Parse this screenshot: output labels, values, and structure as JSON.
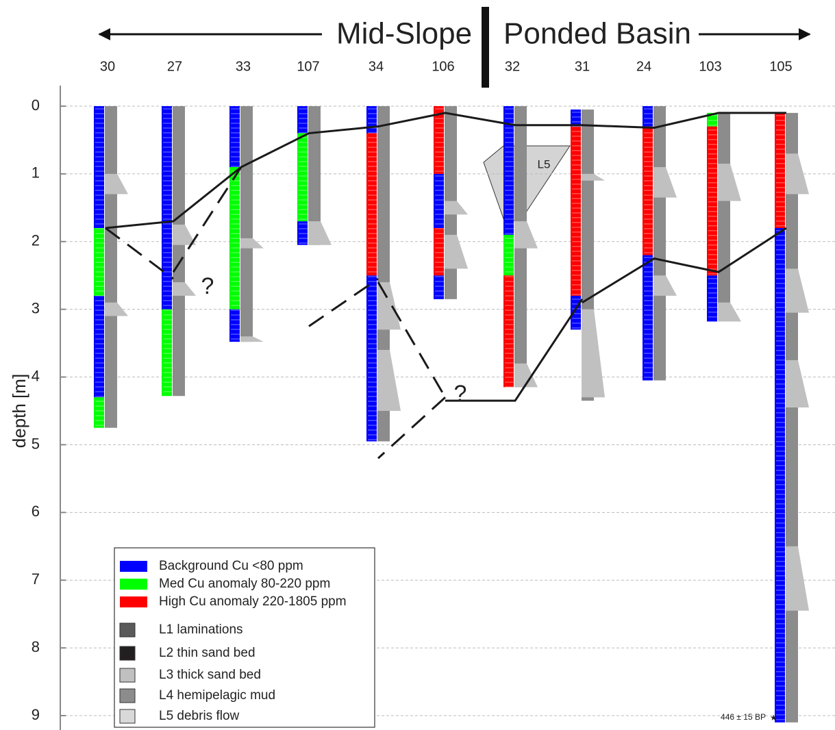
{
  "chart_data": {
    "type": "core-log",
    "header": {
      "left": "Mid-Slope",
      "right": "Ponded Basin"
    },
    "y_label": "depth [m]",
    "ylim": [
      0,
      9.1
    ],
    "yticks": [
      0,
      1,
      2,
      3,
      4,
      5,
      6,
      7,
      8,
      9
    ],
    "grid": true,
    "legend": [
      {
        "label": "Background Cu <80 ppm",
        "color": "#0000ff"
      },
      {
        "label": "Med Cu anomaly 80-220 ppm",
        "color": "#00ff00"
      },
      {
        "label": "High Cu anomaly 220-1805 ppm",
        "color": "#ff0000"
      },
      {
        "label": "L1 laminations",
        "color": "#5a5a5a"
      },
      {
        "label": "L2 thin sand bed",
        "color": "#231f20"
      },
      {
        "label": "L3 thick sand bed",
        "color": "#c0c0c0"
      },
      {
        "label": "L4 hemipelagic mud",
        "color": "#8c8c8c"
      },
      {
        "label": "L5 debris flow",
        "color": "#d9d9d9"
      }
    ],
    "cores": [
      {
        "name": "30",
        "top": 0,
        "bottom": 4.75,
        "cu": [
          [
            [
              0,
              1.8
            ],
            [
              2.8,
              4.3
            ]
          ],
          [
            [
              1.8,
              2.8
            ],
            [
              4.3,
              4.75
            ]
          ],
          []
        ],
        "thick_sand": [
          [
            1.0,
            1.3
          ],
          [
            2.9,
            3.1
          ]
        ]
      },
      {
        "name": "27",
        "top": 0,
        "bottom": 4.28,
        "cu": [
          [
            [
              0,
              2.3
            ],
            [
              2.3,
              3.0
            ]
          ],
          [
            [
              3.0,
              4.28
            ]
          ],
          []
        ],
        "thick_sand": [
          [
            1.75,
            2.05
          ],
          [
            2.6,
            2.8
          ]
        ]
      },
      {
        "name": "33",
        "top": 0,
        "bottom": 3.48,
        "cu": [
          [
            [
              0,
              0.9
            ],
            [
              3.0,
              3.48
            ]
          ],
          [
            [
              0.9,
              3.0
            ]
          ],
          []
        ],
        "thick_sand": [
          [
            1.95,
            2.1
          ],
          [
            3.4,
            3.48
          ]
        ]
      },
      {
        "name": "107",
        "top": 0,
        "bottom": 2.05,
        "cu": [
          [
            [
              0,
              0.4
            ],
            [
              1.7,
              2.05
            ]
          ],
          [
            [
              0.4,
              1.7
            ]
          ],
          []
        ],
        "thick_sand": [
          [
            1.7,
            2.05
          ]
        ]
      },
      {
        "name": "34",
        "top": 0,
        "bottom": 4.95,
        "cu": [
          [
            [
              0,
              0.4
            ],
            [
              2.5,
              4.95
            ]
          ],
          [],
          [
            [
              0.4,
              2.5
            ]
          ]
        ],
        "thick_sand": [
          [
            2.6,
            3.3
          ],
          [
            3.6,
            4.5
          ]
        ]
      },
      {
        "name": "106",
        "top": 0,
        "bottom": 2.85,
        "cu": [
          [
            [
              1.0,
              1.8
            ],
            [
              2.5,
              2.85
            ]
          ],
          [],
          [
            [
              0,
              1.0
            ],
            [
              1.8,
              2.5
            ]
          ]
        ],
        "thick_sand": [
          [
            1.4,
            1.6
          ],
          [
            1.9,
            2.4
          ]
        ]
      },
      {
        "name": "32",
        "top": 0,
        "bottom": 4.15,
        "cu": [
          [
            [
              0,
              1.9
            ]
          ],
          [
            [
              1.9,
              2.5
            ]
          ],
          [
            [
              2.5,
              4.15
            ]
          ]
        ],
        "thick_sand": [
          [
            1.7,
            2.1
          ],
          [
            3.8,
            4.15
          ]
        ]
      },
      {
        "name": "31",
        "top": 0.05,
        "bottom": 4.35,
        "cu": [
          [
            [
              0.05,
              0.3
            ],
            [
              2.8,
              3.3
            ]
          ],
          [],
          [
            [
              0.3,
              2.8
            ]
          ]
        ],
        "thick_sand": [
          [
            1.0,
            1.1
          ],
          [
            3.0,
            4.3
          ]
        ]
      },
      {
        "name": "24",
        "top": 0,
        "bottom": 4.05,
        "cu": [
          [
            [
              0,
              0.3
            ],
            [
              2.2,
              4.05
            ]
          ],
          [],
          [
            [
              0.3,
              2.2
            ]
          ]
        ],
        "thick_sand": [
          [
            0.9,
            1.35
          ],
          [
            2.5,
            2.8
          ]
        ]
      },
      {
        "name": "103",
        "top": 0.1,
        "bottom": 3.18,
        "cu": [
          [
            [
              2.5,
              3.18
            ]
          ],
          [
            [
              0.1,
              0.3
            ]
          ],
          [
            [
              0.3,
              2.5
            ]
          ]
        ],
        "thick_sand": [
          [
            0.85,
            1.4
          ],
          [
            2.9,
            3.18
          ]
        ]
      },
      {
        "name": "105",
        "top": 0.1,
        "bottom": 9.1,
        "cu": [
          [
            [
              1.8,
              9.1
            ]
          ],
          [],
          [
            [
              0.1,
              1.8
            ]
          ]
        ],
        "thick_sand": [
          [
            0.7,
            1.3
          ],
          [
            2.4,
            3.05
          ],
          [
            3.75,
            4.45
          ],
          [
            6.5,
            7.45
          ]
        ]
      }
    ],
    "correlations": [
      {
        "style": "solid",
        "points": [
          [
            "30",
            1.8
          ],
          [
            "27",
            1.7
          ],
          [
            "33",
            0.9
          ],
          [
            "107",
            0.4
          ],
          [
            "34",
            0.3
          ],
          [
            "106",
            0.1
          ],
          [
            "32",
            0.28
          ],
          [
            "31",
            0.28
          ],
          [
            "24",
            0.32
          ],
          [
            "103",
            0.1
          ],
          [
            "105",
            0.1
          ]
        ]
      },
      {
        "style": "solid",
        "points": [
          [
            "105",
            1.8
          ],
          [
            "103",
            2.45
          ],
          [
            "24",
            2.25
          ],
          [
            "31",
            2.9
          ]
        ]
      },
      {
        "style": "solid",
        "points": [
          [
            "31",
            2.85
          ],
          [
            "32",
            4.35
          ],
          [
            "106",
            4.35
          ]
        ]
      },
      {
        "style": "dashed",
        "points": [
          [
            "30",
            1.8
          ],
          [
            "27",
            2.55
          ]
        ]
      },
      {
        "style": "dashed",
        "points": [
          [
            "27",
            2.45
          ],
          [
            "33",
            0.9
          ]
        ]
      },
      {
        "style": "dashed",
        "points": [
          [
            "107",
            3.25
          ],
          [
            "34",
            2.55
          ]
        ]
      },
      {
        "style": "dashed",
        "points": [
          [
            "34",
            2.6
          ],
          [
            "106",
            4.3
          ]
        ]
      },
      {
        "style": "dashed",
        "points": [
          [
            "106",
            4.3
          ],
          [
            "34",
            5.2
          ]
        ]
      }
    ],
    "annotations": [
      "?",
      "?",
      "L5",
      "446 ± 15 BP"
    ]
  }
}
